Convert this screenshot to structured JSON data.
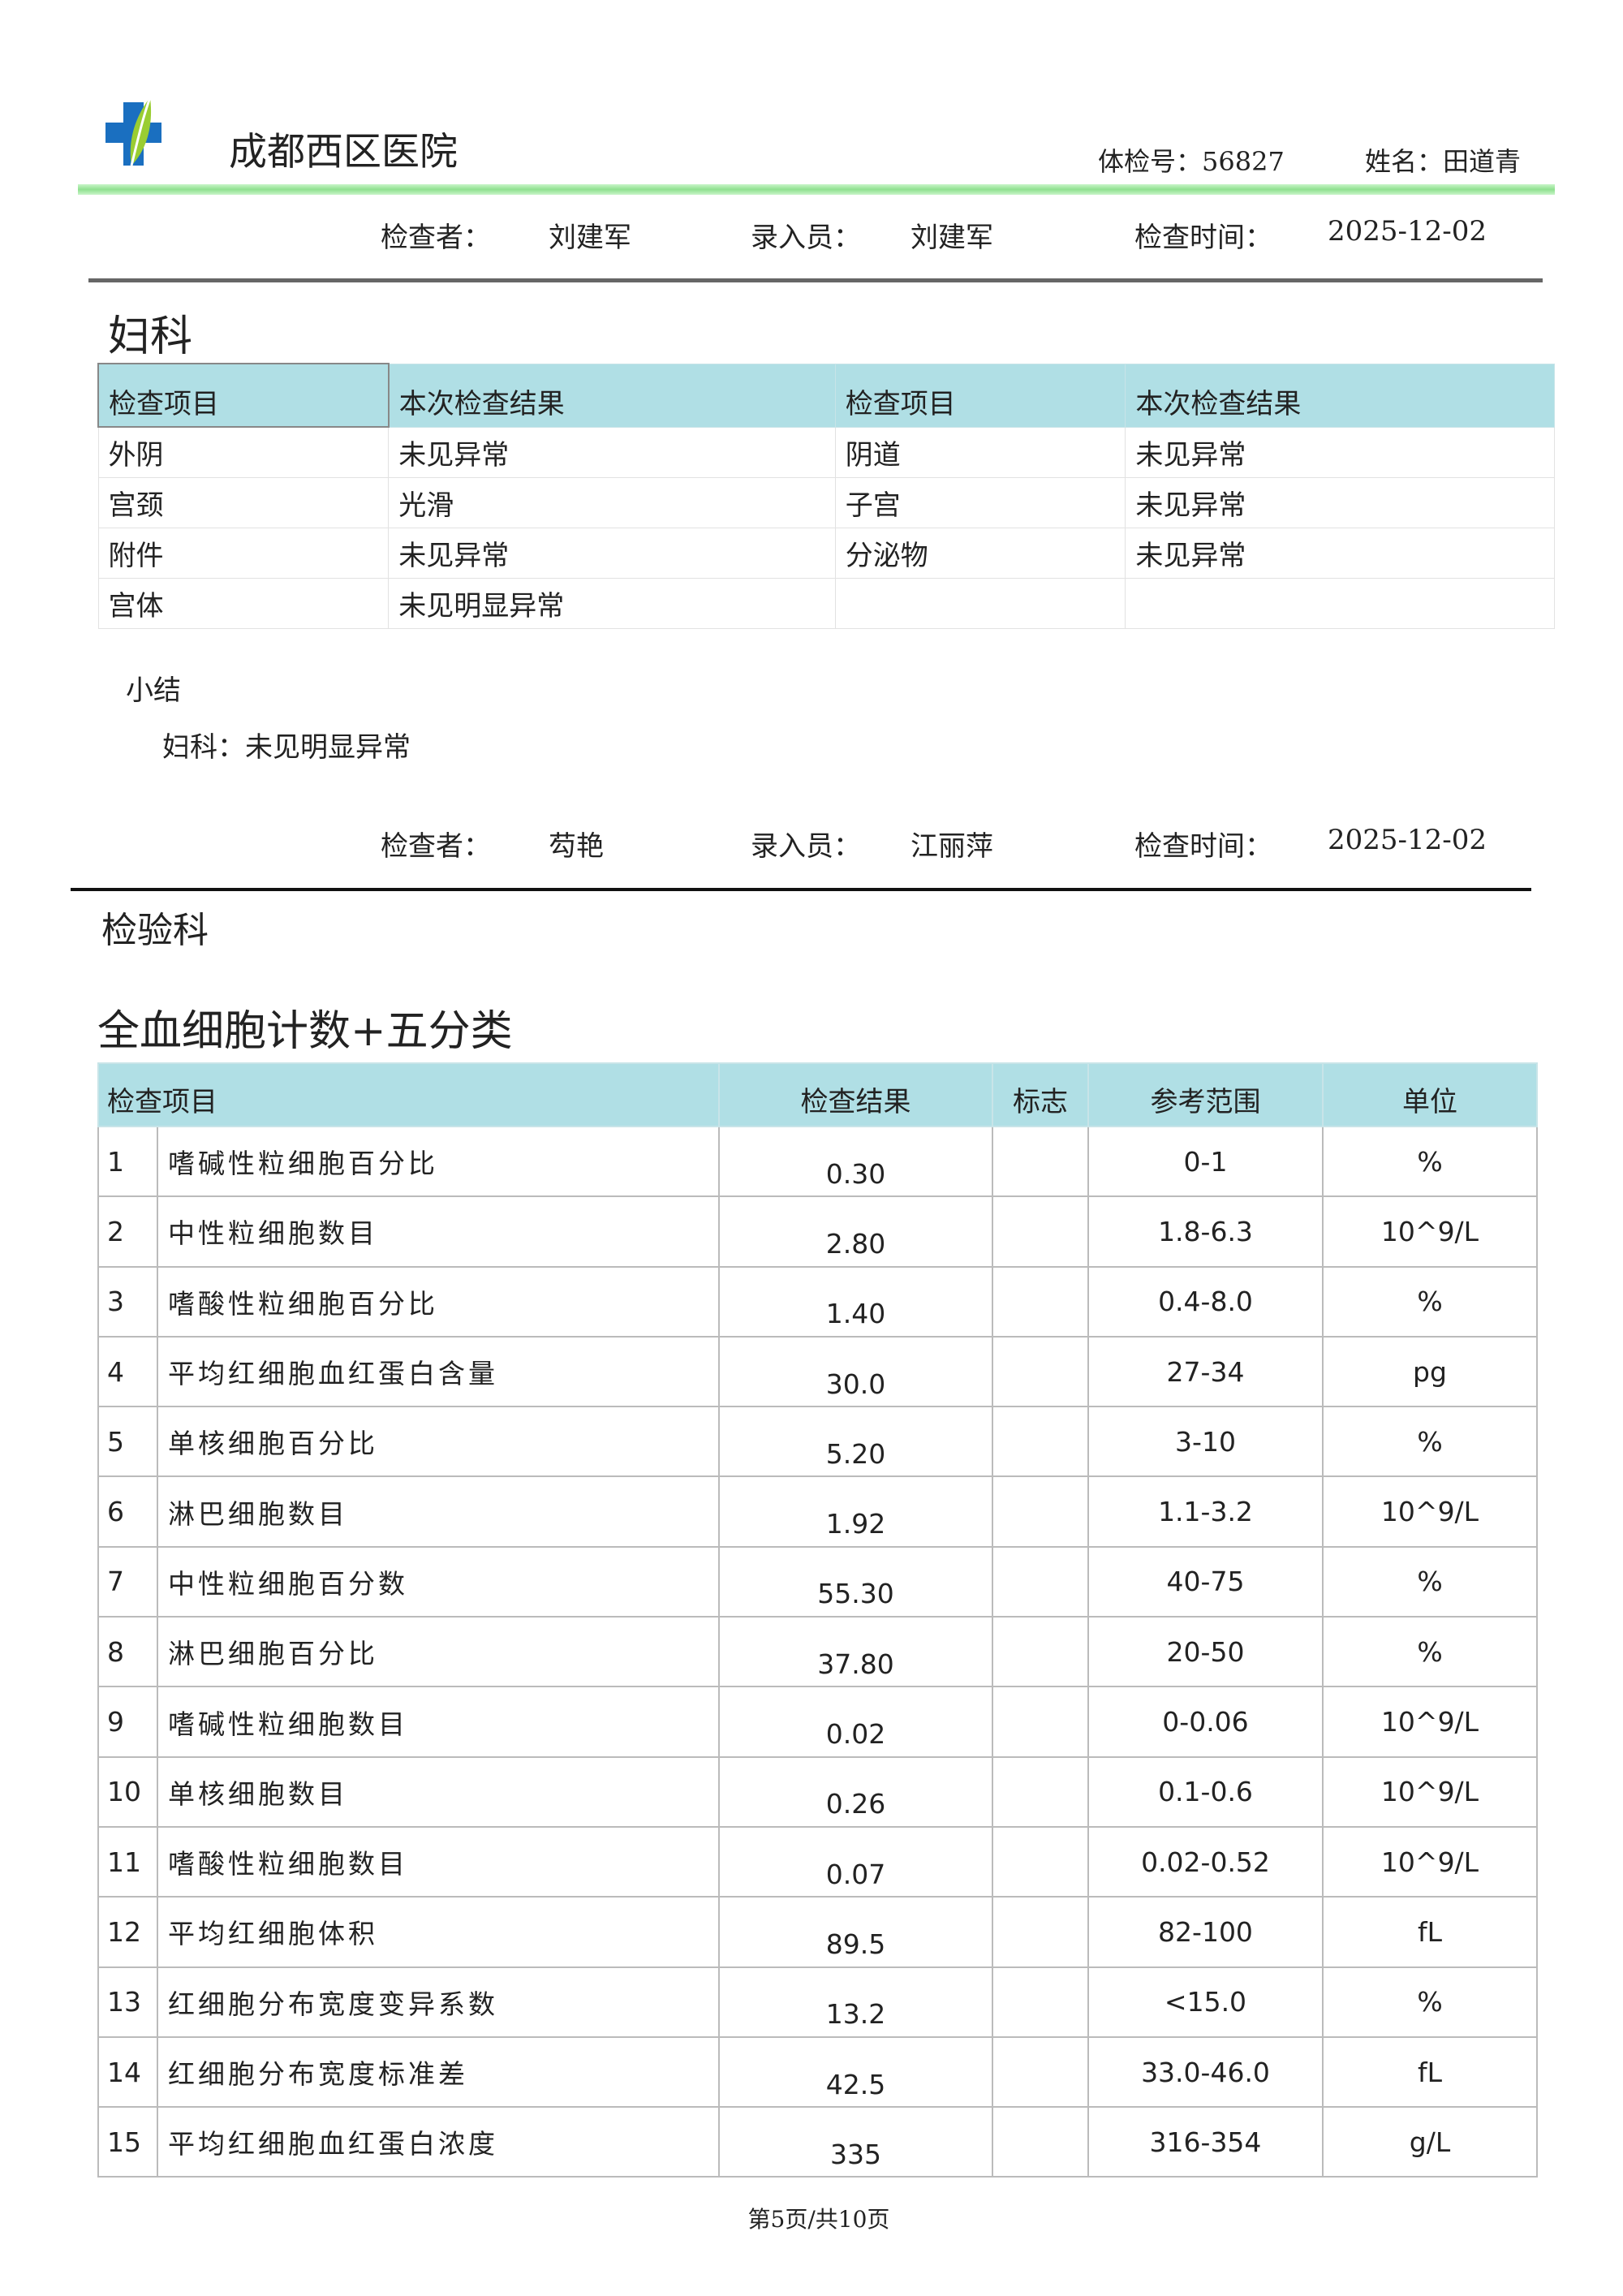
{
  "header": {
    "hospital": "成都西区医院",
    "exam_no_label": "体检号：",
    "exam_no": "56827",
    "name_label": "姓名：",
    "name": "田道青",
    "accent": "#8fe08f"
  },
  "gyn": {
    "info": {
      "checker_label": "检查者：",
      "checker": "刘建军",
      "entry_label": "录入员：",
      "entry": "刘建军",
      "time_label": "检查时间：",
      "time": "2025-12-02"
    },
    "title": "妇科",
    "headers": [
      "检查项目",
      "本次检查结果",
      "检查项目",
      "本次检查结果"
    ],
    "rows": [
      [
        "外阴",
        "未见异常",
        "阴道",
        "未见异常"
      ],
      [
        "宫颈",
        "光滑",
        "子宫",
        "未见异常"
      ],
      [
        "附件",
        "未见异常",
        "分泌物",
        "未见异常"
      ],
      [
        "宫体",
        "未见明显异常",
        "",
        ""
      ]
    ],
    "summary_label": "小结",
    "summary": "妇科：未见明显异常"
  },
  "lab": {
    "info": {
      "checker_label": "检查者：",
      "checker": "芶艳",
      "entry_label": "录入员：",
      "entry": "江丽萍",
      "time_label": "检查时间：",
      "time": "2025-12-02"
    },
    "dept": "检验科",
    "title": "全血细胞计数+五分类",
    "headers": [
      "检查项目",
      "检查结果",
      "标志",
      "参考范围",
      "单位"
    ],
    "rows": [
      [
        "1",
        "嗜碱性粒细胞百分比",
        "0.30",
        "",
        "0-1",
        "%"
      ],
      [
        "2",
        "中性粒细胞数目",
        "2.80",
        "",
        "1.8-6.3",
        "10^9/L"
      ],
      [
        "3",
        "嗜酸性粒细胞百分比",
        "1.40",
        "",
        "0.4-8.0",
        "%"
      ],
      [
        "4",
        "平均红细胞血红蛋白含量",
        "30.0",
        "",
        "27-34",
        "pg"
      ],
      [
        "5",
        "单核细胞百分比",
        "5.20",
        "",
        "3-10",
        "%"
      ],
      [
        "6",
        "淋巴细胞数目",
        "1.92",
        "",
        "1.1-3.2",
        "10^9/L"
      ],
      [
        "7",
        "中性粒细胞百分数",
        "55.30",
        "",
        "40-75",
        "%"
      ],
      [
        "8",
        "淋巴细胞百分比",
        "37.80",
        "",
        "20-50",
        "%"
      ],
      [
        "9",
        "嗜碱性粒细胞数目",
        "0.02",
        "",
        "0-0.06",
        "10^9/L"
      ],
      [
        "10",
        "单核细胞数目",
        "0.26",
        "",
        "0.1-0.6",
        "10^9/L"
      ],
      [
        "11",
        "嗜酸性粒细胞数目",
        "0.07",
        "",
        "0.02-0.52",
        "10^9/L"
      ],
      [
        "12",
        "平均红细胞体积",
        "89.5",
        "",
        "82-100",
        "fL"
      ],
      [
        "13",
        "红细胞分布宽度变异系数",
        "13.2",
        "",
        "<15.0",
        "%"
      ],
      [
        "14",
        "红细胞分布宽度标准差",
        "42.5",
        "",
        "33.0-46.0",
        "fL"
      ],
      [
        "15",
        "平均红细胞血红蛋白浓度",
        "335",
        "",
        "316-354",
        "g/L"
      ]
    ]
  },
  "footer": {
    "page": "第5页/共10页"
  }
}
